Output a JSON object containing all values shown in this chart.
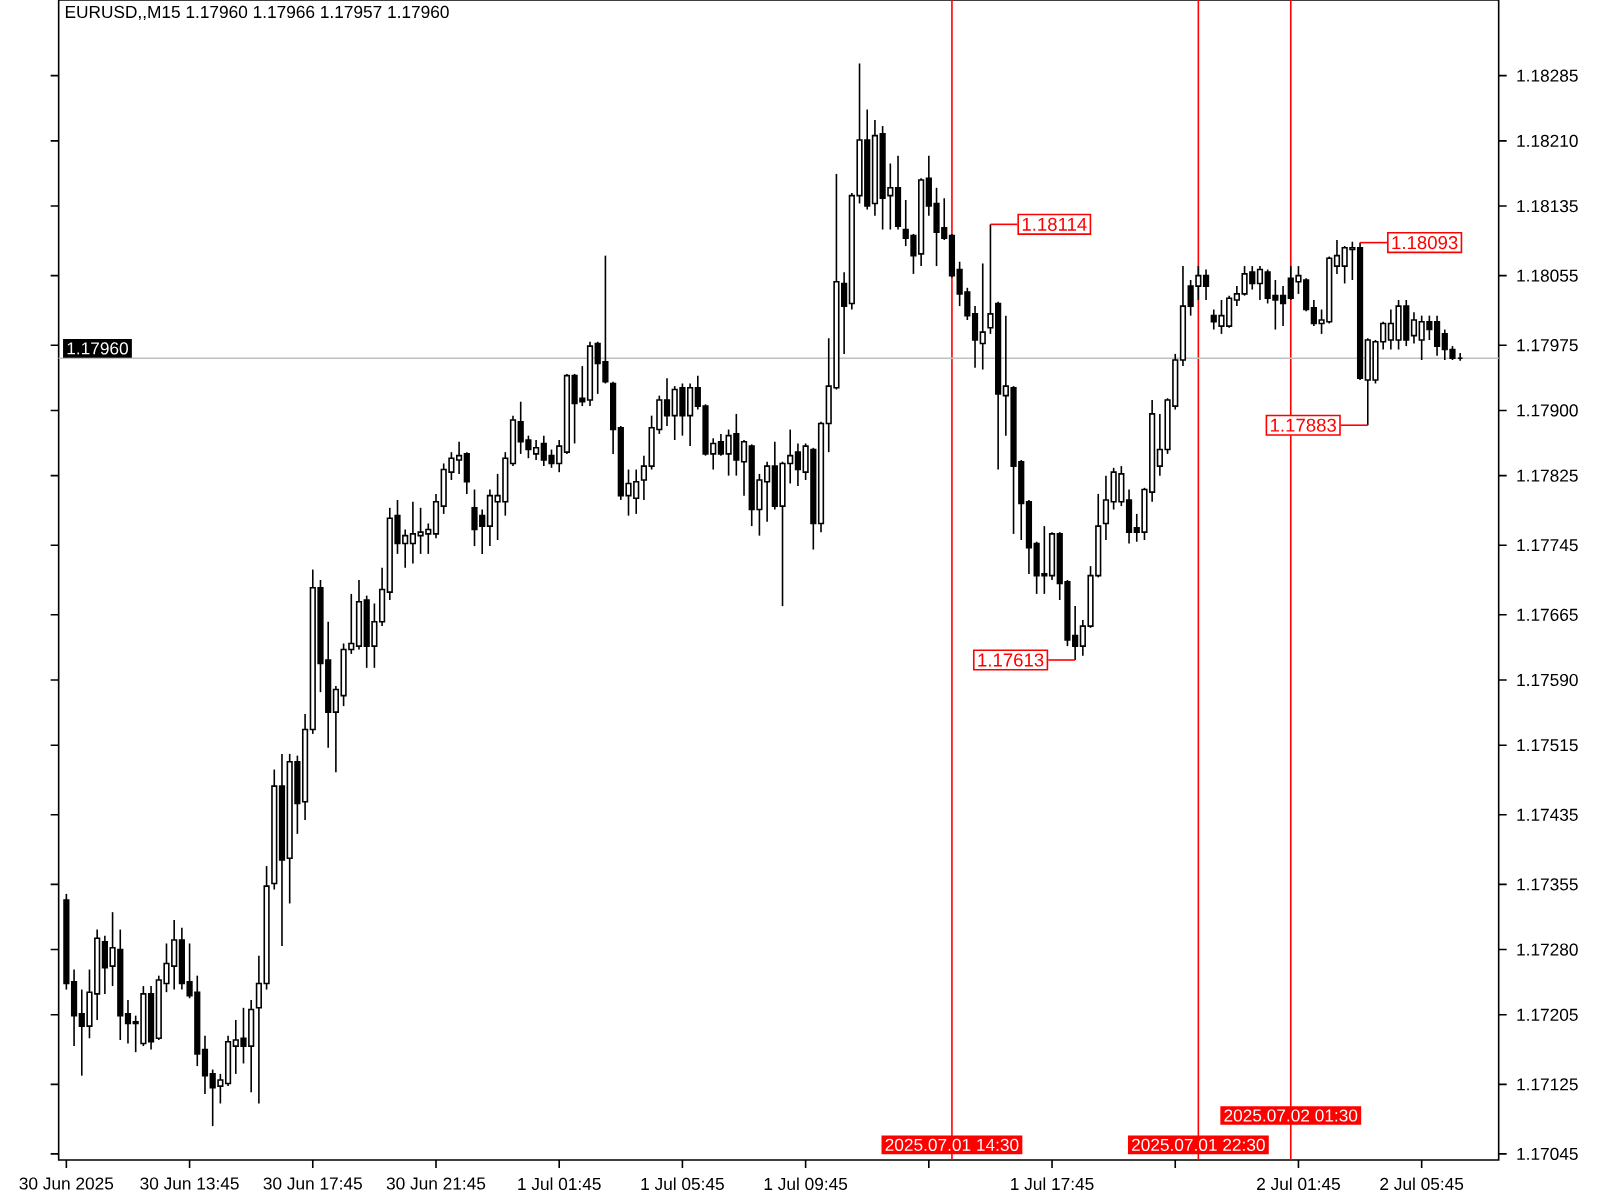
{
  "chart_data": {
    "type": "candlestick",
    "title": "EURUSD,,M15  1.17960 1.17966 1.17957 1.17960",
    "color": "#000000",
    "x": [
      "2025-06-30T09:45",
      "2025-06-30T10:00",
      "2025-06-30T10:15",
      "2025-06-30T10:30",
      "2025-06-30T10:45",
      "2025-06-30T11:00",
      "2025-06-30T11:15",
      "2025-06-30T11:30",
      "2025-06-30T11:45",
      "2025-06-30T12:00",
      "2025-06-30T12:15",
      "2025-06-30T12:30",
      "2025-06-30T12:45",
      "2025-06-30T13:00",
      "2025-06-30T13:15",
      "2025-06-30T13:30",
      "2025-06-30T13:45",
      "2025-06-30T14:00",
      "2025-06-30T14:15",
      "2025-06-30T14:30",
      "2025-06-30T14:45",
      "2025-06-30T15:00",
      "2025-06-30T15:15",
      "2025-06-30T15:30",
      "2025-06-30T15:45",
      "2025-06-30T16:00",
      "2025-06-30T16:15",
      "2025-06-30T16:30",
      "2025-06-30T16:45",
      "2025-06-30T17:00",
      "2025-06-30T17:15",
      "2025-06-30T17:30",
      "2025-06-30T17:45",
      "2025-06-30T18:00",
      "2025-06-30T18:15",
      "2025-06-30T18:30",
      "2025-06-30T18:45",
      "2025-06-30T19:00",
      "2025-06-30T19:15",
      "2025-06-30T19:30",
      "2025-06-30T19:45",
      "2025-06-30T20:00",
      "2025-06-30T20:15",
      "2025-06-30T20:30",
      "2025-06-30T20:45",
      "2025-06-30T21:00",
      "2025-06-30T21:15",
      "2025-06-30T21:30",
      "2025-06-30T21:45",
      "2025-06-30T22:00",
      "2025-06-30T22:15",
      "2025-06-30T22:30",
      "2025-06-30T22:45",
      "2025-06-30T23:00",
      "2025-06-30T23:15",
      "2025-06-30T23:30",
      "2025-06-30T23:45",
      "2025-07-01T00:00",
      "2025-07-01T00:15",
      "2025-07-01T00:30",
      "2025-07-01T00:45",
      "2025-07-01T01:00",
      "2025-07-01T01:15",
      "2025-07-01T01:30",
      "2025-07-01T01:45",
      "2025-07-01T02:00",
      "2025-07-01T02:15",
      "2025-07-01T02:30",
      "2025-07-01T02:45",
      "2025-07-01T03:00",
      "2025-07-01T03:15",
      "2025-07-01T03:30",
      "2025-07-01T03:45",
      "2025-07-01T04:00",
      "2025-07-01T04:15",
      "2025-07-01T04:30",
      "2025-07-01T04:45",
      "2025-07-01T05:00",
      "2025-07-01T05:15",
      "2025-07-01T05:30",
      "2025-07-01T05:45",
      "2025-07-01T06:00",
      "2025-07-01T06:15",
      "2025-07-01T06:30",
      "2025-07-01T06:45",
      "2025-07-01T07:00",
      "2025-07-01T07:15",
      "2025-07-01T07:30",
      "2025-07-01T07:45",
      "2025-07-01T08:00",
      "2025-07-01T08:15",
      "2025-07-01T08:30",
      "2025-07-01T08:45",
      "2025-07-01T09:00",
      "2025-07-01T09:15",
      "2025-07-01T09:30",
      "2025-07-01T09:45",
      "2025-07-01T10:00",
      "2025-07-01T10:15",
      "2025-07-01T10:30",
      "2025-07-01T10:45",
      "2025-07-01T11:00",
      "2025-07-01T11:15",
      "2025-07-01T11:30",
      "2025-07-01T11:45",
      "2025-07-01T12:00",
      "2025-07-01T12:15",
      "2025-07-01T12:30",
      "2025-07-01T12:45",
      "2025-07-01T13:00",
      "2025-07-01T13:15",
      "2025-07-01T13:30",
      "2025-07-01T13:45",
      "2025-07-01T14:00",
      "2025-07-01T14:15",
      "2025-07-01T14:30",
      "2025-07-01T14:45",
      "2025-07-01T15:00",
      "2025-07-01T15:15",
      "2025-07-01T15:30",
      "2025-07-01T15:45",
      "2025-07-01T16:00",
      "2025-07-01T16:15",
      "2025-07-01T16:30",
      "2025-07-01T16:45",
      "2025-07-01T17:00",
      "2025-07-01T17:15",
      "2025-07-01T17:30",
      "2025-07-01T17:45",
      "2025-07-01T18:00",
      "2025-07-01T18:15",
      "2025-07-01T18:30",
      "2025-07-01T18:45",
      "2025-07-01T19:00",
      "2025-07-01T19:15",
      "2025-07-01T19:30",
      "2025-07-01T19:45",
      "2025-07-01T20:00",
      "2025-07-01T20:15",
      "2025-07-01T20:30",
      "2025-07-01T20:45",
      "2025-07-01T21:00",
      "2025-07-01T21:15",
      "2025-07-01T21:30",
      "2025-07-01T21:45",
      "2025-07-01T22:00",
      "2025-07-01T22:15",
      "2025-07-01T22:30",
      "2025-07-01T22:45",
      "2025-07-01T23:00",
      "2025-07-01T23:15",
      "2025-07-01T23:30",
      "2025-07-01T23:45",
      "2025-07-02T00:00",
      "2025-07-02T00:15",
      "2025-07-02T00:30",
      "2025-07-02T00:45",
      "2025-07-02T01:00",
      "2025-07-02T01:15",
      "2025-07-02T01:30",
      "2025-07-02T01:45",
      "2025-07-02T02:00",
      "2025-07-02T02:15",
      "2025-07-02T02:30",
      "2025-07-02T02:45",
      "2025-07-02T03:00",
      "2025-07-02T03:15",
      "2025-07-02T03:30",
      "2025-07-02T03:45",
      "2025-07-02T04:00",
      "2025-07-02T04:15",
      "2025-07-02T04:30",
      "2025-07-02T04:45",
      "2025-07-02T05:00",
      "2025-07-02T05:15",
      "2025-07-02T05:30",
      "2025-07-02T05:45",
      "2025-07-02T06:00",
      "2025-07-02T06:15",
      "2025-07-02T06:30",
      "2025-07-02T06:45",
      "2025-07-02T07:00"
    ],
    "ohlc": [
      [
        1.17337,
        1.17344,
        1.17234,
        1.17241
      ],
      [
        1.17243,
        1.17257,
        1.17169,
        1.17204
      ],
      [
        1.17206,
        1.17234,
        1.17135,
        1.17192
      ],
      [
        1.17192,
        1.17257,
        1.17178,
        1.17231
      ],
      [
        1.17229,
        1.17303,
        1.17199,
        1.17293
      ],
      [
        1.17289,
        1.17296,
        1.17229,
        1.17259
      ],
      [
        1.17261,
        1.17323,
        1.17238,
        1.17282
      ],
      [
        1.1728,
        1.17303,
        1.17176,
        1.17204
      ],
      [
        1.17206,
        1.17222,
        1.17172,
        1.17195
      ],
      [
        1.17197,
        1.17204,
        1.17162,
        1.17195
      ],
      [
        1.17172,
        1.17238,
        1.17169,
        1.17229
      ],
      [
        1.17229,
        1.17238,
        1.17165,
        1.17174
      ],
      [
        1.17178,
        1.1725,
        1.17176,
        1.17245
      ],
      [
        1.17241,
        1.17287,
        1.17231,
        1.17264
      ],
      [
        1.17261,
        1.17314,
        1.17234,
        1.17291
      ],
      [
        1.17291,
        1.17305,
        1.17234,
        1.17241
      ],
      [
        1.17243,
        1.17287,
        1.17224,
        1.17227
      ],
      [
        1.17231,
        1.1725,
        1.17146,
        1.1716
      ],
      [
        1.17165,
        1.17181,
        1.17114,
        1.17135
      ],
      [
        1.17137,
        1.17142,
        1.17077,
        1.17121
      ],
      [
        1.17123,
        1.17137,
        1.17103,
        1.1713
      ],
      [
        1.17126,
        1.17181,
        1.17123,
        1.17174
      ],
      [
        1.17169,
        1.17199,
        1.17137,
        1.17176
      ],
      [
        1.17178,
        1.17213,
        1.17149,
        1.17169
      ],
      [
        1.17169,
        1.17222,
        1.17116,
        1.17211
      ],
      [
        1.17213,
        1.17273,
        1.17103,
        1.17241
      ],
      [
        1.17241,
        1.17376,
        1.17234,
        1.17353
      ],
      [
        1.17356,
        1.17487,
        1.17349,
        1.17468
      ],
      [
        1.17468,
        1.17505,
        1.17284,
        1.17383
      ],
      [
        1.17385,
        1.17505,
        1.17333,
        1.17496
      ],
      [
        1.17496,
        1.17503,
        1.17413,
        1.17448
      ],
      [
        1.1745,
        1.17551,
        1.17429,
        1.17533
      ],
      [
        1.17533,
        1.17717,
        1.17528,
        1.17696
      ],
      [
        1.17696,
        1.17705,
        1.17576,
        1.17609
      ],
      [
        1.17613,
        1.17657,
        1.17512,
        1.17553
      ],
      [
        1.17553,
        1.17583,
        1.17484,
        1.17579
      ],
      [
        1.17572,
        1.17632,
        1.1756,
        1.17625
      ],
      [
        1.17625,
        1.17689,
        1.1762,
        1.17632
      ],
      [
        1.17629,
        1.17705,
        1.17625,
        1.1768
      ],
      [
        1.17682,
        1.17687,
        1.17604,
        1.17629
      ],
      [
        1.17629,
        1.17678,
        1.17604,
        1.17657
      ],
      [
        1.17657,
        1.17719,
        1.17652,
        1.17694
      ],
      [
        1.17691,
        1.17788,
        1.17682,
        1.17776
      ],
      [
        1.17779,
        1.17797,
        1.17735,
        1.17747
      ],
      [
        1.17747,
        1.17763,
        1.17719,
        1.17756
      ],
      [
        1.17747,
        1.17795,
        1.17724,
        1.17758
      ],
      [
        1.17756,
        1.17788,
        1.17735,
        1.1776
      ],
      [
        1.17758,
        1.1777,
        1.17735,
        1.17763
      ],
      [
        1.17758,
        1.17804,
        1.17753,
        1.17795
      ],
      [
        1.1779,
        1.17839,
        1.17781,
        1.17832
      ],
      [
        1.17829,
        1.17852,
        1.1782,
        1.17845
      ],
      [
        1.17843,
        1.17864,
        1.17827,
        1.17848
      ],
      [
        1.1785,
        1.17852,
        1.17804,
        1.17818
      ],
      [
        1.17788,
        1.17809,
        1.17744,
        1.17763
      ],
      [
        1.17779,
        1.17786,
        1.17735,
        1.17767
      ],
      [
        1.17767,
        1.17809,
        1.17744,
        1.17802
      ],
      [
        1.17795,
        1.17827,
        1.17751,
        1.17802
      ],
      [
        1.17795,
        1.17852,
        1.17779,
        1.17845
      ],
      [
        1.17839,
        1.17894,
        1.17836,
        1.17889
      ],
      [
        1.17887,
        1.1791,
        1.1785,
        1.17864
      ],
      [
        1.17866,
        1.17871,
        1.17845,
        1.17855
      ],
      [
        1.1785,
        1.17866,
        1.17843,
        1.17857
      ],
      [
        1.17862,
        1.17871,
        1.17836,
        1.17843
      ],
      [
        1.17848,
        1.17855,
        1.17834,
        1.17839
      ],
      [
        1.17839,
        1.17866,
        1.17829,
        1.17859
      ],
      [
        1.17852,
        1.17942,
        1.1785,
        1.1794
      ],
      [
        1.1794,
        1.17942,
        1.17862,
        1.17908
      ],
      [
        1.17914,
        1.17951,
        1.17905,
        1.1791
      ],
      [
        1.17912,
        1.17979,
        1.17905,
        1.17974
      ],
      [
        1.17977,
        1.17979,
        1.17919,
        1.17954
      ],
      [
        1.17956,
        1.18078,
        1.17931,
        1.17933
      ],
      [
        1.17931,
        1.17933,
        1.1785,
        1.17878
      ],
      [
        1.1788,
        1.17882,
        1.17797,
        1.17802
      ],
      [
        1.17802,
        1.17832,
        1.17779,
        1.17816
      ],
      [
        1.17799,
        1.17832,
        1.17781,
        1.17818
      ],
      [
        1.1782,
        1.17848,
        1.17797,
        1.17836
      ],
      [
        1.17836,
        1.17894,
        1.17832,
        1.1788
      ],
      [
        1.17878,
        1.17917,
        1.17873,
        1.17912
      ],
      [
        1.17912,
        1.17937,
        1.17882,
        1.17894
      ],
      [
        1.17894,
        1.17928,
        1.17866,
        1.17924
      ],
      [
        1.17926,
        1.17931,
        1.17871,
        1.17894
      ],
      [
        1.17894,
        1.17931,
        1.17859,
        1.17926
      ],
      [
        1.17926,
        1.1794,
        1.17901,
        1.17905
      ],
      [
        1.17905,
        1.17907,
        1.17848,
        1.1785
      ],
      [
        1.1785,
        1.17868,
        1.17832,
        1.17862
      ],
      [
        1.17864,
        1.17873,
        1.17848,
        1.1785
      ],
      [
        1.1785,
        1.17878,
        1.17825,
        1.17871
      ],
      [
        1.17873,
        1.17896,
        1.17825,
        1.17843
      ],
      [
        1.17841,
        1.17866,
        1.17802,
        1.17864
      ],
      [
        1.17859,
        1.17861,
        1.17767,
        1.17786
      ],
      [
        1.17786,
        1.17827,
        1.17756,
        1.1782
      ],
      [
        1.17818,
        1.17841,
        1.17772,
        1.17836
      ],
      [
        1.17836,
        1.17864,
        1.17786,
        1.1779
      ],
      [
        1.1779,
        1.17841,
        1.17675,
        1.17839
      ],
      [
        1.17839,
        1.17878,
        1.17816,
        1.17848
      ],
      [
        1.17852,
        1.17862,
        1.17813,
        1.17832
      ],
      [
        1.17829,
        1.17862,
        1.1782,
        1.17859
      ],
      [
        1.17855,
        1.17857,
        1.1774,
        1.1777
      ],
      [
        1.1777,
        1.17887,
        1.1776,
        1.17885
      ],
      [
        1.17885,
        1.17983,
        1.17852,
        1.17928
      ],
      [
        1.17926,
        1.18172,
        1.17924,
        1.18048
      ],
      [
        1.18046,
        1.18059,
        1.17965,
        1.1802
      ],
      [
        1.18023,
        1.1815,
        1.18016,
        1.18147
      ],
      [
        1.18147,
        1.18299,
        1.18138,
        1.18211
      ],
      [
        1.18211,
        1.18246,
        1.18131,
        1.18135
      ],
      [
        1.18138,
        1.18234,
        1.18124,
        1.18216
      ],
      [
        1.18218,
        1.18227,
        1.18108,
        1.18144
      ],
      [
        1.18147,
        1.18184,
        1.18108,
        1.18156
      ],
      [
        1.18156,
        1.18193,
        1.18108,
        1.18112
      ],
      [
        1.18108,
        1.18142,
        1.18089,
        1.18098
      ],
      [
        1.18101,
        1.18103,
        1.18057,
        1.18078
      ],
      [
        1.1808,
        1.18167,
        1.18066,
        1.18165
      ],
      [
        1.18167,
        1.18193,
        1.18124,
        1.18135
      ],
      [
        1.18138,
        1.18156,
        1.18066,
        1.18105
      ],
      [
        1.1811,
        1.18144,
        1.18096,
        1.18098
      ],
      [
        1.18101,
        1.18103,
        1.18053,
        1.18055
      ],
      [
        1.18062,
        1.18071,
        1.1802,
        1.18034
      ],
      [
        1.18036,
        1.18041,
        1.18004,
        1.18009
      ],
      [
        1.18011,
        1.1802,
        1.17949,
        1.17981
      ],
      [
        1.17977,
        1.18069,
        1.17947,
        1.1799
      ],
      [
        1.17995,
        1.18114,
        1.17988,
        1.18011
      ],
      [
        1.18023,
        1.18025,
        1.17832,
        1.17919
      ],
      [
        1.17917,
        1.18009,
        1.17871,
        1.17928
      ],
      [
        1.17926,
        1.17928,
        1.17758,
        1.17836
      ],
      [
        1.17841,
        1.17843,
        1.17751,
        1.17793
      ],
      [
        1.17795,
        1.17797,
        1.17712,
        1.17742
      ],
      [
        1.17747,
        1.17749,
        1.17689,
        1.1771
      ],
      [
        1.1771,
        1.17767,
        1.17689,
        1.17712
      ],
      [
        1.1771,
        1.1776,
        1.17705,
        1.17758
      ],
      [
        1.17758,
        1.1776,
        1.17682,
        1.17701
      ],
      [
        1.17703,
        1.17705,
        1.17629,
        1.17636
      ],
      [
        1.17641,
        1.17675,
        1.17613,
        1.17629
      ],
      [
        1.17629,
        1.17659,
        1.17618,
        1.17652
      ],
      [
        1.17652,
        1.17721,
        1.1765,
        1.1771
      ],
      [
        1.1771,
        1.17804,
        1.17708,
        1.17767
      ],
      [
        1.1777,
        1.17825,
        1.17751,
        1.17797
      ],
      [
        1.17795,
        1.17834,
        1.17786,
        1.17829
      ],
      [
        1.17795,
        1.17836,
        1.1779,
        1.17827
      ],
      [
        1.17797,
        1.17809,
        1.17747,
        1.1776
      ],
      [
        1.17765,
        1.17781,
        1.17749,
        1.1776
      ],
      [
        1.1776,
        1.17811,
        1.17751,
        1.17809
      ],
      [
        1.17806,
        1.17912,
        1.17795,
        1.17896
      ],
      [
        1.17836,
        1.17896,
        1.17825,
        1.17855
      ],
      [
        1.17855,
        1.17914,
        1.1785,
        1.17912
      ],
      [
        1.17905,
        1.17965,
        1.17901,
        1.17958
      ],
      [
        1.17958,
        1.18066,
        1.17951,
        1.1802
      ],
      [
        1.18043,
        1.1805,
        1.18009,
        1.1802
      ],
      [
        1.18043,
        1.18066,
        1.18027,
        1.18055
      ],
      [
        1.18055,
        1.18062,
        1.18027,
        1.18043
      ],
      [
        1.18009,
        1.18016,
        1.17993,
        1.18002
      ],
      [
        1.17997,
        1.18027,
        1.17988,
        1.18009
      ],
      [
        1.17997,
        1.18032,
        1.17995,
        1.18029
      ],
      [
        1.18027,
        1.18043,
        1.1802,
        1.18034
      ],
      [
        1.18034,
        1.18066,
        1.18032,
        1.18057
      ],
      [
        1.18059,
        1.18066,
        1.18039,
        1.18046
      ],
      [
        1.18046,
        1.18066,
        1.18027,
        1.18062
      ],
      [
        1.18059,
        1.18062,
        1.18023,
        1.18029
      ],
      [
        1.18032,
        1.1805,
        1.17993,
        1.18027
      ],
      [
        1.18032,
        1.18043,
        1.17997,
        1.18023
      ],
      [
        1.18052,
        1.18066,
        1.18027,
        1.18029
      ],
      [
        1.18048,
        1.18066,
        1.18034,
        1.18055
      ],
      [
        1.1805,
        1.18052,
        1.18014,
        1.18016
      ],
      [
        1.18018,
        1.18027,
        1.17997,
        1.18
      ],
      [
        1.18,
        1.18016,
        1.17988,
        1.18004
      ],
      [
        1.18002,
        1.18077,
        1.18,
        1.18075
      ],
      [
        1.18066,
        1.18096,
        1.18057,
        1.18078
      ],
      [
        1.18066,
        1.18089,
        1.18046,
        1.18087
      ],
      [
        1.18085,
        1.18094,
        1.1805,
        1.18087
      ],
      [
        1.18087,
        1.18093,
        1.17935,
        1.17937
      ],
      [
        1.17935,
        1.17983,
        1.17883,
        1.17981
      ],
      [
        1.17935,
        1.17981,
        1.17931,
        1.17979
      ],
      [
        1.17979,
        1.18002,
        1.1797,
        1.18
      ],
      [
        1.17981,
        1.18016,
        1.1797,
        1.18
      ],
      [
        1.17981,
        1.18027,
        1.1797,
        1.1802
      ],
      [
        1.1802,
        1.18027,
        1.17974,
        1.17981
      ],
      [
        1.17986,
        1.18013,
        1.17977,
        1.18004
      ],
      [
        1.17981,
        1.18009,
        1.17958,
        1.18002
      ],
      [
        1.18002,
        1.18009,
        1.17981,
        1.17993
      ],
      [
        1.18002,
        1.18009,
        1.17963,
        1.17974
      ],
      [
        1.17988,
        1.17993,
        1.17958,
        1.1797
      ],
      [
        1.1797,
        1.17974,
        1.17958,
        1.1796
      ],
      [
        1.1796,
        1.17966,
        1.17957,
        1.1796
      ]
    ],
    "xlim": [
      "2025-06-30T09:30",
      "2025-07-02T08:15"
    ],
    "xticks": [
      {
        "value": "2025-06-30T09:45",
        "label": "30 Jun 2025"
      },
      {
        "value": "2025-06-30T13:45",
        "label": "30 Jun 13:45"
      },
      {
        "value": "2025-06-30T17:45",
        "label": "30 Jun 17:45"
      },
      {
        "value": "2025-06-30T21:45",
        "label": "30 Jun 21:45"
      },
      {
        "value": "2025-07-01T01:45",
        "label": "1 Jul 01:45"
      },
      {
        "value": "2025-07-01T05:45",
        "label": "1 Jul 05:45"
      },
      {
        "value": "2025-07-01T09:45",
        "label": "1 Jul 09:45"
      },
      {
        "value": "2025-07-01T13:45",
        "label": null
      },
      {
        "value": "2025-07-01T17:45",
        "label": "1 Jul 17:45"
      },
      {
        "value": "2025-07-01T21:45",
        "label": null
      },
      {
        "value": "2025-07-02T01:45",
        "label": "2 Jul 01:45"
      },
      {
        "value": "2025-07-02T05:45",
        "label": "2 Jul 05:45"
      }
    ],
    "ylim": [
      1.17038,
      1.18372
    ],
    "yticks": [
      1.17045,
      1.17125,
      1.17205,
      {
        "value": 1.1728,
        "label": "1.17280"
      },
      1.17355,
      1.17435,
      1.17515,
      {
        "value": 1.1759,
        "label": "1.17590"
      },
      1.17665,
      1.17745,
      1.17825,
      {
        "value": 1.179,
        "label": "1.17900"
      },
      1.17975,
      1.18055,
      1.18135,
      {
        "value": 1.1821,
        "label": "1.18210"
      },
      1.18285
    ],
    "ref_lines": [
      {
        "axis": "x",
        "value": "2025-07-01T14:30",
        "label": "2025.07.01 14:30",
        "color": "#ff0000"
      },
      {
        "axis": "x",
        "value": "2025-07-01T22:30",
        "label": "2025.07.01 22:30",
        "color": "#ff0000"
      },
      {
        "axis": "x",
        "value": "2025-07-02T01:30",
        "label": "2025.07.02 01:30",
        "color": "#ff0000"
      },
      {
        "axis": "y",
        "value": 1.1796,
        "label": "1.17960",
        "color": "#c0c0c0"
      }
    ],
    "annotations": [
      {
        "text": "1.18114",
        "x": "2025-07-01T15:45",
        "y": 1.18114
      },
      {
        "text": "1.17613",
        "x": "2025-07-01T18:30",
        "y": 1.17613
      },
      {
        "text": "1.18093",
        "x": "2025-07-02T03:45",
        "y": 1.18093
      },
      {
        "text": "1.17883",
        "x": "2025-07-02T04:00",
        "y": 1.17883
      }
    ]
  }
}
